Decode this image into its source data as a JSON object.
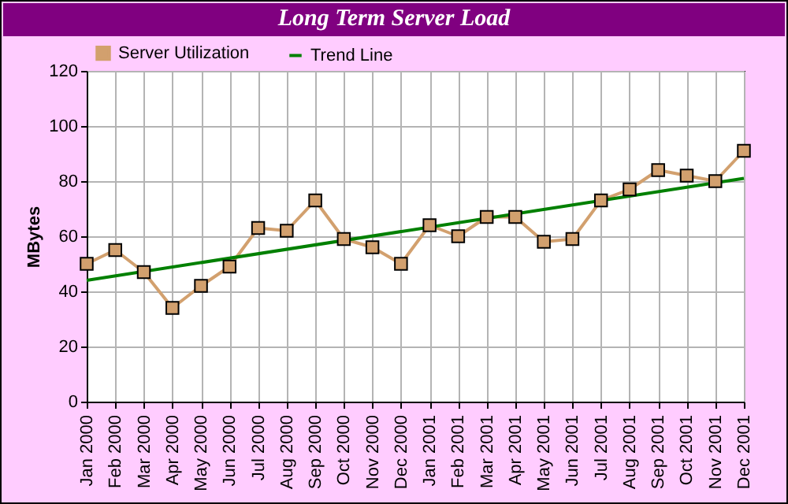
{
  "chart_data": {
    "type": "line",
    "title": "Long Term Server Load",
    "ylabel": "MBytes",
    "categories": [
      "Jan 2000",
      "Feb 2000",
      "Mar 2000",
      "Apr 2000",
      "May 2000",
      "Jun 2000",
      "Jul 2000",
      "Aug 2000",
      "Sep 2000",
      "Oct 2000",
      "Nov 2000",
      "Dec 2000",
      "Jan 2001",
      "Feb 2001",
      "Mar 2001",
      "Apr 2001",
      "May 2001",
      "Jun 2001",
      "Jul 2001",
      "Aug 2001",
      "Sep 2001",
      "Oct 2001",
      "Nov 2001",
      "Dec 2001"
    ],
    "series": [
      {
        "name": "Server Utilization",
        "color": "#d2a06e",
        "marker": "square",
        "values": [
          50,
          55,
          47,
          34,
          42,
          49,
          63,
          62,
          73,
          59,
          56,
          50,
          64,
          60,
          67,
          67,
          58,
          59,
          73,
          77,
          84,
          82,
          80,
          91
        ]
      },
      {
        "name": "Trend Line",
        "color": "#008000",
        "marker": "none",
        "x": [
          "Jan 2000",
          "Dec 2001"
        ],
        "values": [
          44,
          81
        ]
      }
    ],
    "ylim": [
      0,
      120
    ],
    "yticks": [
      0,
      20,
      40,
      60,
      80,
      100,
      120
    ],
    "grid": true,
    "legend": "top left"
  }
}
